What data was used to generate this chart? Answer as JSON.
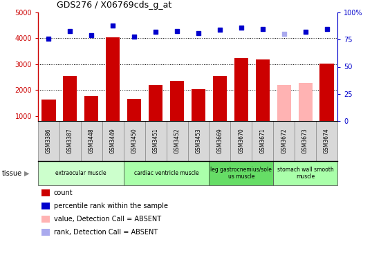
{
  "title": "GDS276 / X06769cds_g_at",
  "samples": [
    "GSM3386",
    "GSM3387",
    "GSM3448",
    "GSM3449",
    "GSM3450",
    "GSM3451",
    "GSM3452",
    "GSM3453",
    "GSM3669",
    "GSM3670",
    "GSM3671",
    "GSM3672",
    "GSM3673",
    "GSM3674"
  ],
  "bar_values": [
    1640,
    2550,
    1750,
    4050,
    1650,
    2200,
    2350,
    2030,
    2540,
    3240,
    3170,
    2190,
    2260,
    3020
  ],
  "bar_colors": [
    "#cc0000",
    "#cc0000",
    "#cc0000",
    "#cc0000",
    "#cc0000",
    "#cc0000",
    "#cc0000",
    "#cc0000",
    "#cc0000",
    "#cc0000",
    "#cc0000",
    "#ffb3b3",
    "#ffb3b3",
    "#cc0000"
  ],
  "rank_values": [
    76,
    83,
    79,
    88,
    78,
    82,
    83,
    81,
    84,
    86,
    85,
    80,
    82,
    85
  ],
  "rank_colors": [
    "#0000cc",
    "#0000cc",
    "#0000cc",
    "#0000cc",
    "#0000cc",
    "#0000cc",
    "#0000cc",
    "#0000cc",
    "#0000cc",
    "#0000cc",
    "#0000cc",
    "#aaaaee",
    "#0000cc",
    "#0000cc"
  ],
  "ylim_left": [
    800,
    5000
  ],
  "ylim_right": [
    0,
    100
  ],
  "yticks_left": [
    1000,
    2000,
    3000,
    4000,
    5000
  ],
  "yticks_right": [
    0,
    25,
    50,
    75,
    100
  ],
  "tissue_groups": [
    {
      "label": "extraocular muscle",
      "start": 0,
      "end": 4,
      "color": "#ccffcc"
    },
    {
      "label": "cardiac ventricle muscle",
      "start": 4,
      "end": 8,
      "color": "#aaffaa"
    },
    {
      "label": "leg gastrocnemius/sole\nus muscle",
      "start": 8,
      "end": 11,
      "color": "#66dd66"
    },
    {
      "label": "stomach wall smooth\nmuscle",
      "start": 11,
      "end": 14,
      "color": "#aaffaa"
    }
  ],
  "legend_items": [
    {
      "label": "count",
      "color": "#cc0000"
    },
    {
      "label": "percentile rank within the sample",
      "color": "#0000cc"
    },
    {
      "label": "value, Detection Call = ABSENT",
      "color": "#ffb3b3"
    },
    {
      "label": "rank, Detection Call = ABSENT",
      "color": "#aaaaee"
    }
  ],
  "tissue_label": "tissue",
  "background_color": "#ffffff",
  "plot_bg_color": "#ffffff",
  "xtick_bg_color": "#d8d8d8"
}
